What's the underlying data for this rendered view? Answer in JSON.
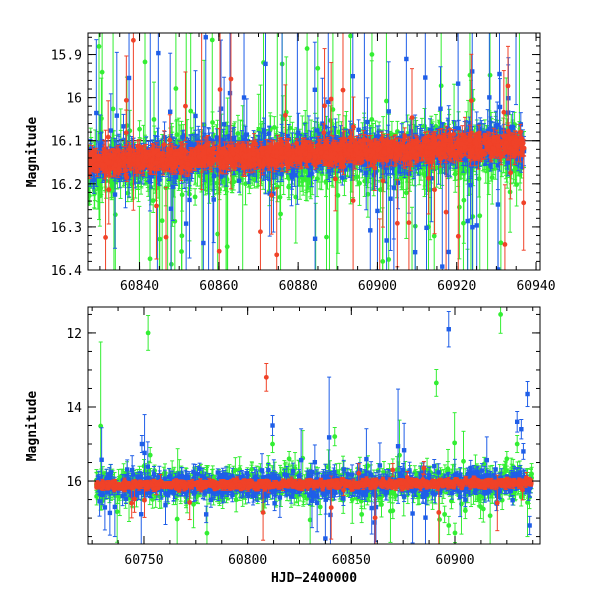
{
  "chart_data": [
    {
      "type": "scatter",
      "title": "",
      "xlabel": "",
      "ylabel": "Magnitude",
      "xlim": [
        60827,
        60941
      ],
      "ylim": [
        16.4,
        15.85
      ],
      "y_inverted": true,
      "x_ticks": [
        60840,
        60860,
        60880,
        60900,
        60920,
        60940
      ],
      "x_tick_labels": [
        "60840",
        "60860",
        "60880",
        "60900",
        "60920",
        "60940"
      ],
      "y_ticks": [
        15.9,
        16.0,
        16.1,
        16.2,
        16.3,
        16.4
      ],
      "y_tick_labels": [
        "15.9",
        "16",
        "16.1",
        "16.2",
        "16.3",
        "16.4"
      ],
      "reference_line": 16.1,
      "grid": false,
      "series": [
        {
          "color": "#33ee33",
          "marker": "circle",
          "error_bars": true,
          "x_range": [
            60827,
            60937
          ],
          "baseline_start": 16.16,
          "baseline_end": 16.12,
          "scatter": 0.03
        },
        {
          "color": "#1f5ee8",
          "marker": "square",
          "error_bars": true,
          "x_range": [
            60827,
            60937
          ],
          "baseline_start": 16.15,
          "baseline_end": 16.11,
          "scatter": 0.02
        },
        {
          "color": "#f04228",
          "marker": "circle",
          "error_bars": true,
          "x_range": [
            60827,
            60937
          ],
          "baseline_start": 16.15,
          "baseline_end": 16.11,
          "scatter": 0.012
        }
      ]
    },
    {
      "type": "scatter",
      "title": "",
      "xlabel": "HJD−2400000",
      "ylabel": "Magnitude",
      "xlim": [
        60723,
        60941
      ],
      "ylim": [
        17.7,
        11.3
      ],
      "y_inverted": true,
      "x_ticks": [
        60750,
        60800,
        60850,
        60900
      ],
      "x_tick_labels": [
        "60750",
        "60800",
        "60850",
        "60900"
      ],
      "y_ticks": [
        12,
        14,
        16
      ],
      "y_tick_labels": [
        "12",
        "14",
        "16"
      ],
      "reference_line": 16.0,
      "grid": false,
      "series": [
        {
          "color": "#33ee33",
          "marker": "circle",
          "error_bars": true,
          "x_range": [
            60727,
            60937
          ],
          "baseline_start": 16.12,
          "baseline_end": 16.05,
          "scatter": 0.2,
          "outliers": [
            [
              60752,
              12.0
            ],
            [
              60922,
              11.5
            ],
            [
              60891,
              13.35
            ],
            [
              60812,
              15.0
            ],
            [
              60842,
              14.8
            ],
            [
              60750,
              15.6
            ],
            [
              60753,
              15.3
            ],
            [
              60895,
              16.9
            ],
            [
              60897,
              17.2
            ],
            [
              60900,
              17.4
            ],
            [
              60855,
              16.9
            ],
            [
              60870,
              16.8
            ],
            [
              60925,
              15.4
            ],
            [
              60930,
              15.0
            ],
            [
              60820,
              15.4
            ],
            [
              60835,
              16.7
            ],
            [
              60760,
              15.9
            ],
            [
              60780,
              15.85
            ],
            [
              60905,
              16.8
            ],
            [
              60880,
              16.4
            ]
          ]
        },
        {
          "color": "#1f5ee8",
          "marker": "square",
          "error_bars": true,
          "x_range": [
            60727,
            60937
          ],
          "baseline_start": 16.12,
          "baseline_end": 16.05,
          "scatter": 0.15,
          "outliers": [
            [
              60897,
              11.9
            ],
            [
              60812,
              14.5
            ],
            [
              60935,
              13.65
            ],
            [
              60930,
              14.4
            ],
            [
              60932,
              14.6
            ],
            [
              60933,
              15.2
            ],
            [
              60749,
              15.0
            ],
            [
              60936,
              17.2
            ],
            [
              60780,
              16.9
            ],
            [
              60813,
              16.6
            ],
            [
              60875,
              15.7
            ],
            [
              60890,
              15.6
            ],
            [
              60905,
              16.5
            ],
            [
              60920,
              16.6
            ],
            [
              60810,
              15.7
            ]
          ]
        },
        {
          "color": "#f04228",
          "marker": "circle",
          "error_bars": true,
          "x_range": [
            60727,
            60937
          ],
          "baseline_start": 16.12,
          "baseline_end": 16.05,
          "scatter": 0.05,
          "outliers": [
            [
              60809,
              13.2
            ],
            [
              60870,
              15.7
            ],
            [
              60885,
              15.65
            ],
            [
              60877,
              15.9
            ],
            [
              60817,
              16.1
            ]
          ]
        }
      ]
    }
  ]
}
